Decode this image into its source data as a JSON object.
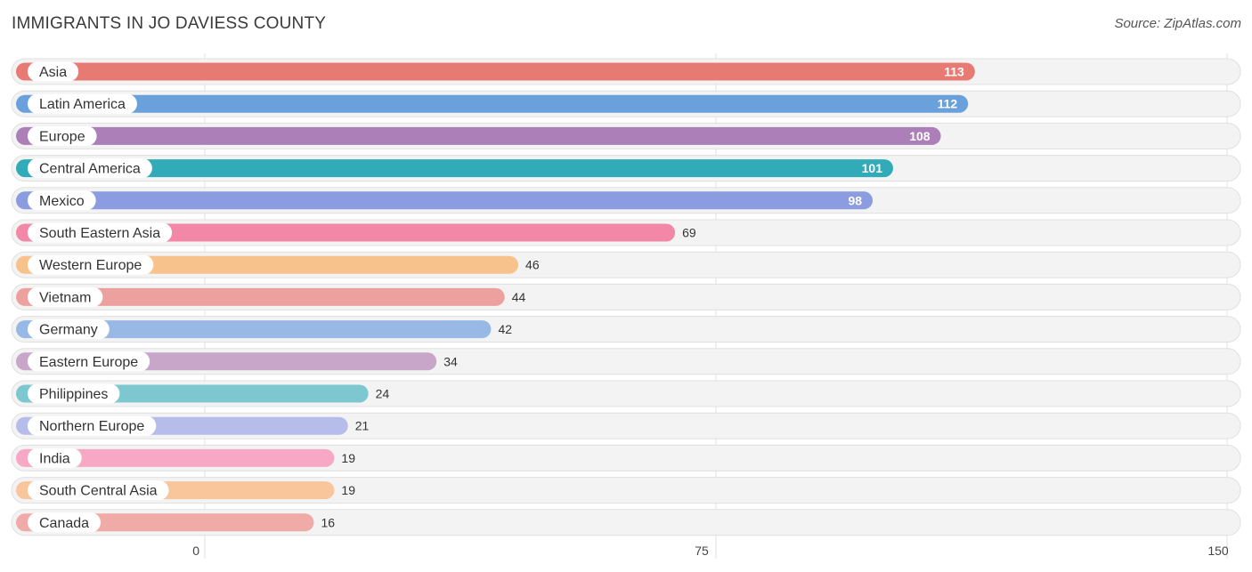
{
  "header": {
    "title": "IMMIGRANTS IN JO DAVIESS COUNTY",
    "source": "Source: ZipAtlas.com"
  },
  "chart_data": {
    "type": "bar",
    "orientation": "horizontal",
    "title": "IMMIGRANTS IN JO DAVIESS COUNTY",
    "xlim": [
      0,
      150
    ],
    "ticks": [
      0,
      75,
      150
    ],
    "tick_labels": [
      "0",
      "75",
      "150"
    ],
    "grid": true,
    "categories": [
      "Asia",
      "Latin America",
      "Europe",
      "Central America",
      "Mexico",
      "South Eastern Asia",
      "Western Europe",
      "Vietnam",
      "Germany",
      "Eastern Europe",
      "Philippines",
      "Northern Europe",
      "India",
      "South Central Asia",
      "Canada"
    ],
    "values": [
      113,
      112,
      108,
      101,
      98,
      69,
      46,
      44,
      42,
      34,
      24,
      21,
      19,
      19,
      16
    ],
    "value_labels": [
      "113",
      "112",
      "108",
      "101",
      "98",
      "69",
      "46",
      "44",
      "42",
      "34",
      "24",
      "21",
      "19",
      "19",
      "16"
    ],
    "colors": [
      "#e87a74",
      "#6aa0dc",
      "#ac7fb8",
      "#32abb8",
      "#8b9ce0",
      "#f287a8",
      "#f8c28c",
      "#eda19f",
      "#98b9e6",
      "#c8a6c9",
      "#7dc8d0",
      "#b6bdea",
      "#f7a8c4",
      "#f9c59a",
      "#f0aaa8"
    ]
  }
}
